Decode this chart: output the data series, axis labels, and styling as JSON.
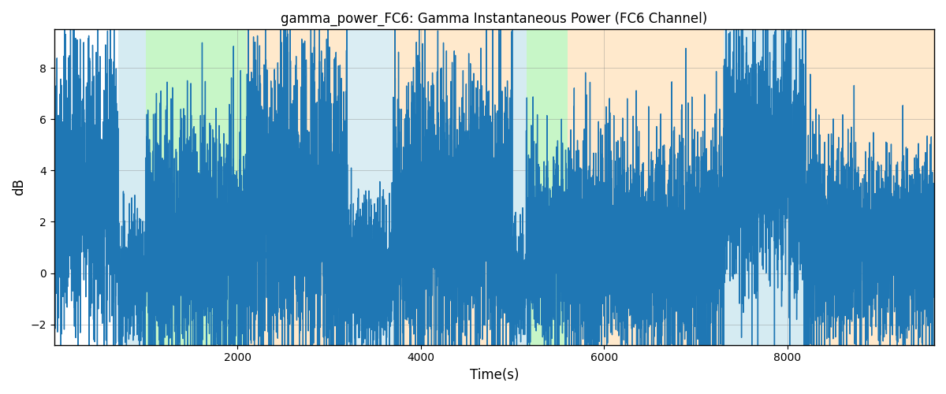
{
  "title": "gamma_power_FC6: Gamma Instantaneous Power (FC6 Channel)",
  "xlabel": "Time(s)",
  "ylabel": "dB",
  "xlim": [
    0,
    9600
  ],
  "ylim": [
    -2.8,
    9.5
  ],
  "yticks": [
    -2,
    0,
    2,
    4,
    6,
    8
  ],
  "xticks": [
    2000,
    4000,
    6000,
    8000
  ],
  "line_color": "#1f77b4",
  "line_width": 1.0,
  "seed": 42,
  "n_points": 9600,
  "background_regions": [
    {
      "xmin": 700,
      "xmax": 1000,
      "color": "#add8e6",
      "alpha": 0.5
    },
    {
      "xmin": 1000,
      "xmax": 2100,
      "color": "#90ee90",
      "alpha": 0.5
    },
    {
      "xmin": 2100,
      "xmax": 3200,
      "color": "#ffd59a",
      "alpha": 0.5
    },
    {
      "xmin": 3200,
      "xmax": 3700,
      "color": "#add8e6",
      "alpha": 0.45
    },
    {
      "xmin": 3700,
      "xmax": 5000,
      "color": "#ffd59a",
      "alpha": 0.5
    },
    {
      "xmin": 5000,
      "xmax": 5150,
      "color": "#add8e6",
      "alpha": 0.5
    },
    {
      "xmin": 5150,
      "xmax": 5600,
      "color": "#90ee90",
      "alpha": 0.5
    },
    {
      "xmin": 5600,
      "xmax": 7300,
      "color": "#ffd59a",
      "alpha": 0.5
    },
    {
      "xmin": 7300,
      "xmax": 8200,
      "color": "#add8e6",
      "alpha": 0.5
    },
    {
      "xmin": 8200,
      "xmax": 9600,
      "color": "#ffd59a",
      "alpha": 0.5
    }
  ],
  "segments": [
    {
      "xmin": 0,
      "xmax": 700,
      "mean": 3.2,
      "std": 2.8,
      "trend": -0.0002
    },
    {
      "xmin": 700,
      "xmax": 1000,
      "mean": -0.5,
      "std": 1.4,
      "trend": 0.0
    },
    {
      "xmin": 1000,
      "xmax": 2100,
      "mean": 1.0,
      "std": 2.5,
      "trend": 0.0
    },
    {
      "xmin": 2100,
      "xmax": 3200,
      "mean": 2.5,
      "std": 3.2,
      "trend": 0.0003
    },
    {
      "xmin": 3200,
      "xmax": 3700,
      "mean": -0.2,
      "std": 1.5,
      "trend": 0.0
    },
    {
      "xmin": 3700,
      "xmax": 5000,
      "mean": 2.5,
      "std": 3.0,
      "trend": -0.0002
    },
    {
      "xmin": 5000,
      "xmax": 5150,
      "mean": -0.5,
      "std": 1.2,
      "trend": 0.0
    },
    {
      "xmin": 5150,
      "xmax": 5600,
      "mean": 1.0,
      "std": 2.0,
      "trend": 0.0
    },
    {
      "xmin": 5600,
      "xmax": 7300,
      "mean": 1.0,
      "std": 2.2,
      "trend": 0.0
    },
    {
      "xmin": 7300,
      "xmax": 8200,
      "mean": 4.5,
      "std": 2.5,
      "trend": -0.0004
    },
    {
      "xmin": 8200,
      "xmax": 9600,
      "mean": 1.0,
      "std": 2.0,
      "trend": 0.0
    }
  ]
}
